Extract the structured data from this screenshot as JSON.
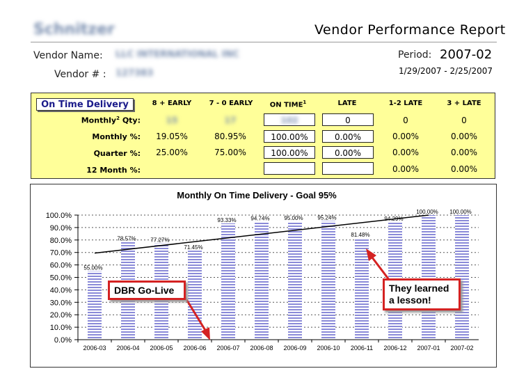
{
  "header": {
    "logo_text": "Schnitzer",
    "report_title": "Vendor Performance Report",
    "vendor_name_label": "Vendor Name:",
    "vendor_name_value": "LLC INTERNATIONAL INC",
    "vendor_num_label": "Vendor # :",
    "vendor_num_value": "127383",
    "period_label": "Period:",
    "period_value": "2007-02",
    "period_dates": "1/29/2007 - 2/25/2007"
  },
  "kpi": {
    "title": "On Time Delivery",
    "columns": [
      "8 + EARLY",
      "7 - 0 EARLY",
      "ON TIME",
      "LATE",
      "1-2 LATE",
      "3 + LATE"
    ],
    "on_time_superscript": "1",
    "rows": {
      "qty": {
        "label": "Monthly",
        "label_sup": "2",
        "label_tail": " Qty:",
        "values": [
          "15",
          "17",
          "102",
          "0",
          "0",
          "0"
        ]
      },
      "monthly": {
        "label": "Monthly %:",
        "values": [
          "19.05%",
          "80.95%",
          "100.00%",
          "0.00%",
          "0.00%",
          "0.00%"
        ]
      },
      "quarter": {
        "label": "Quarter %:",
        "values": [
          "25.00%",
          "75.00%",
          "100.00%",
          "0.00%",
          "0.00%",
          "0.00%"
        ]
      },
      "twelve": {
        "label": "12 Month %:",
        "values": [
          "",
          "",
          "",
          "",
          "0.00%",
          "0.00%"
        ]
      }
    }
  },
  "annotations": {
    "golive": "DBR Go-Live",
    "lesson_line1": "They learned",
    "lesson_line2": "a lesson!"
  },
  "chart_data": {
    "type": "bar",
    "title": "Monthly On Time Delivery - Goal 95%",
    "categories": [
      "2006-03",
      "2006-04",
      "2006-05",
      "2006-06",
      "2006-07",
      "2006-08",
      "2006-09",
      "2006-10",
      "2006-11",
      "2006-12",
      "2007-01",
      "2007-02"
    ],
    "values": [
      55.0,
      78.57,
      77.27,
      71.45,
      93.33,
      94.74,
      95.0,
      95.24,
      81.48,
      94.29,
      100.0,
      100.0
    ],
    "labels": [
      "55.00%",
      "78.57%",
      "77.27%",
      "71.45%",
      "93.33%",
      "94.74%",
      "95.00%",
      "95.24%",
      "81.48%",
      "94.29%",
      "100.00%",
      "100.00%"
    ],
    "trendline": {
      "start": 69.5,
      "end": 100.0
    },
    "ylim": [
      0,
      100
    ],
    "yticks": [
      "0.0%",
      "10.0%",
      "20.0%",
      "30.0%",
      "40.0%",
      "50.0%",
      "60.0%",
      "70.0%",
      "80.0%",
      "90.0%",
      "100.0%"
    ],
    "grid": true,
    "colors": {
      "bar": "#8a8ad8",
      "stripe": "#ffffff",
      "trend": "#000000",
      "callout_border": "#d42222",
      "kpi_bg": "#ffff99"
    }
  }
}
